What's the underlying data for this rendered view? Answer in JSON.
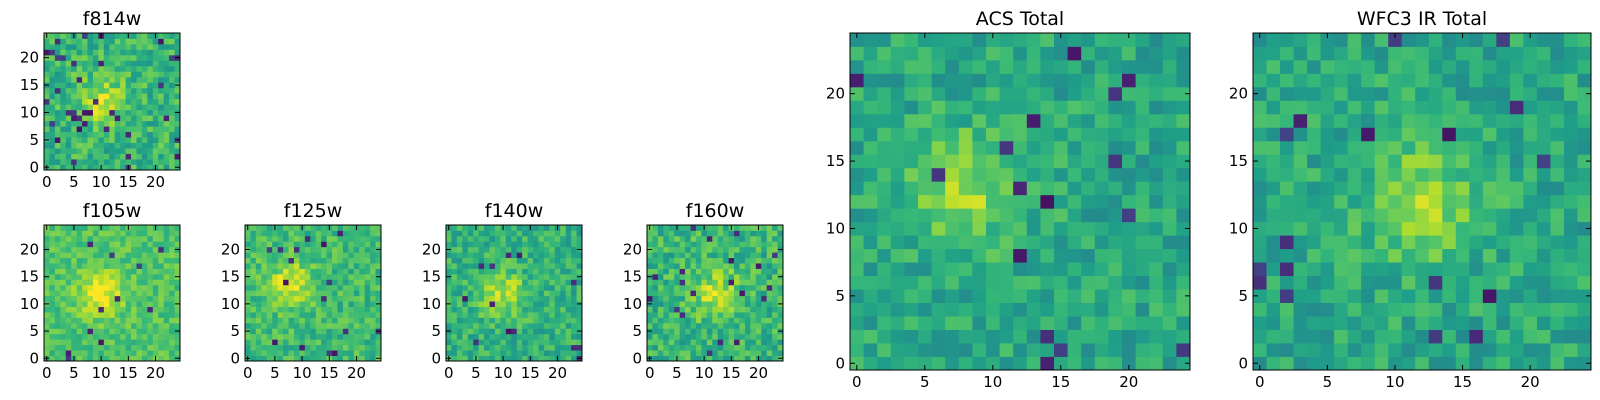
{
  "chart_data": [
    {
      "type": "heatmap",
      "id": "f814w",
      "title": "f814w",
      "grid": 25,
      "colormap": "viridis",
      "xticks": [
        0,
        5,
        10,
        15,
        20
      ],
      "yticks": [
        0,
        5,
        10,
        15,
        20
      ],
      "xlim": [
        -0.5,
        24.5
      ],
      "ylim": [
        -0.5,
        24.5
      ],
      "hotspot": [
        10,
        12
      ],
      "mean": 0.66,
      "noise": 0.14,
      "dark_fraction": 0.06,
      "seed": 11
    },
    {
      "type": "heatmap",
      "id": "f105w",
      "title": "f105w",
      "grid": 25,
      "colormap": "viridis",
      "xticks": [
        0,
        5,
        10,
        15,
        20
      ],
      "yticks": [
        0,
        5,
        10,
        15,
        20
      ],
      "xlim": [
        -0.5,
        24.5
      ],
      "ylim": [
        -0.5,
        24.5
      ],
      "hotspot": [
        10,
        12
      ],
      "mean": 0.72,
      "noise": 0.1,
      "dark_fraction": 0.015,
      "seed": 23
    },
    {
      "type": "heatmap",
      "id": "f125w",
      "title": "f125w",
      "grid": 25,
      "colormap": "viridis",
      "xticks": [
        0,
        5,
        10,
        15,
        20
      ],
      "yticks": [
        0,
        5,
        10,
        15,
        20
      ],
      "xlim": [
        -0.5,
        24.5
      ],
      "ylim": [
        -0.5,
        24.5
      ],
      "hotspot": [
        8,
        14
      ],
      "mean": 0.68,
      "noise": 0.12,
      "dark_fraction": 0.02,
      "seed": 37
    },
    {
      "type": "heatmap",
      "id": "f140w",
      "title": "f140w",
      "grid": 25,
      "colormap": "viridis",
      "xticks": [
        0,
        5,
        10,
        15,
        20
      ],
      "yticks": [
        0,
        5,
        10,
        15,
        20
      ],
      "xlim": [
        -0.5,
        24.5
      ],
      "ylim": [
        -0.5,
        24.5
      ],
      "hotspot": [
        10,
        12
      ],
      "mean": 0.64,
      "noise": 0.13,
      "dark_fraction": 0.025,
      "seed": 41
    },
    {
      "type": "heatmap",
      "id": "f160w",
      "title": "f160w",
      "grid": 25,
      "colormap": "viridis",
      "xticks": [
        0,
        5,
        10,
        15,
        20
      ],
      "yticks": [
        0,
        5,
        10,
        15,
        20
      ],
      "xlim": [
        -0.5,
        24.5
      ],
      "ylim": [
        -0.5,
        24.5
      ],
      "hotspot": [
        12,
        12
      ],
      "mean": 0.66,
      "noise": 0.14,
      "dark_fraction": 0.03,
      "seed": 53
    },
    {
      "type": "heatmap",
      "id": "acs-total",
      "title": "ACS Total",
      "grid": 25,
      "colormap": "viridis",
      "xticks": [
        0,
        5,
        10,
        15,
        20
      ],
      "yticks": [
        0,
        5,
        10,
        15,
        20
      ],
      "xlim": [
        -0.5,
        24.5
      ],
      "ylim": [
        -0.5,
        24.5
      ],
      "hotspot": [
        8,
        13
      ],
      "mean": 0.6,
      "noise": 0.12,
      "dark_fraction": 0.025,
      "seed": 67
    },
    {
      "type": "heatmap",
      "id": "wfc3-ir-total",
      "title": "WFC3 IR Total",
      "grid": 25,
      "colormap": "viridis",
      "xticks": [
        0,
        5,
        10,
        15,
        20
      ],
      "yticks": [
        0,
        5,
        10,
        15,
        20
      ],
      "xlim": [
        -0.5,
        24.5
      ],
      "ylim": [
        -0.5,
        24.5
      ],
      "hotspot": [
        12,
        12
      ],
      "mean": 0.6,
      "noise": 0.12,
      "dark_fraction": 0.025,
      "seed": 79
    }
  ]
}
